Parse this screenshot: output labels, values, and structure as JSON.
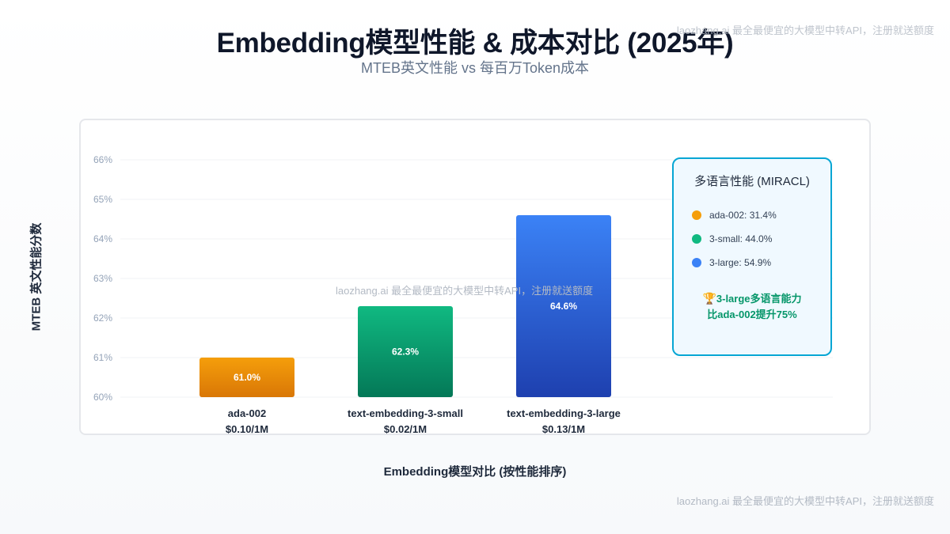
{
  "header": {
    "title": "Embedding模型性能 & 成本对比 (2025年)",
    "subtitle": "MTEB英文性能 vs 每百万Token成本"
  },
  "watermark": "laozhang.ai 最全最便宜的大模型中转API，注册就送额度",
  "chart_data": {
    "type": "bar",
    "categories": [
      "ada-002",
      "text-embedding-3-small",
      "text-embedding-3-large"
    ],
    "costs": [
      "$0.10/1M",
      "$0.02/1M",
      "$0.13/1M"
    ],
    "values": [
      61.0,
      62.3,
      64.6
    ],
    "value_labels": [
      "61.0%",
      "62.3%",
      "64.6%"
    ],
    "colors": [
      [
        "#f59e0b",
        "#d97706"
      ],
      [
        "#10b981",
        "#047857"
      ],
      [
        "#3b82f6",
        "#1e40af"
      ]
    ],
    "ylim": [
      60,
      66
    ],
    "yticks": [
      60,
      61,
      62,
      63,
      64,
      65,
      66
    ],
    "ytick_labels": [
      "60%",
      "61%",
      "62%",
      "63%",
      "64%",
      "65%",
      "66%"
    ],
    "xlabel": "Embedding模型对比 (按性能排序)",
    "ylabel": "MTEB 英文性能分数",
    "grid": true
  },
  "legend": {
    "title": "多语言性能 (MIRACL)",
    "items": [
      {
        "label": "ada-002: 31.4%",
        "color": "#f59e0b"
      },
      {
        "label": "3-small: 44.0%",
        "color": "#10b981"
      },
      {
        "label": "3-large: 54.9%",
        "color": "#3b82f6"
      }
    ],
    "note_line1": "3-large多语言能力",
    "note_line2": "比ada-002提升75%",
    "note_icon": "trophy-icon"
  }
}
